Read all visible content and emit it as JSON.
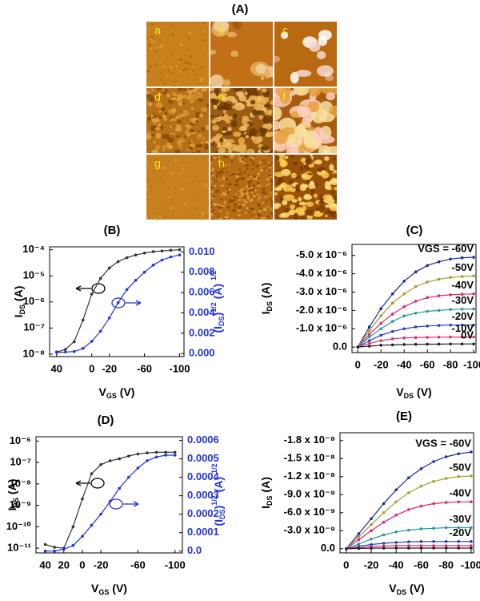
{
  "panel_a": {
    "title": "(A)",
    "tiles": [
      "a",
      "b",
      "c",
      "d",
      "e",
      "f",
      "g",
      "h",
      "i"
    ]
  },
  "chart_data": [
    {
      "type": "line",
      "title": "(B)",
      "x_label": [
        "V",
        {
          "text": "GS",
          "shift": "sub"
        },
        " (V)"
      ],
      "y_label": [
        "I",
        {
          "text": "DS",
          "shift": "sub"
        },
        " (A)"
      ],
      "y2_label": [
        "(I",
        {
          "text": "DS",
          "shift": "sub"
        },
        ")",
        {
          "text": "1/2",
          "shift": "super"
        },
        " (A) ",
        {
          "text": "1/2",
          "shift": "super"
        }
      ],
      "y2_color": "#2233dd",
      "x": [
        40,
        30,
        20,
        10,
        0,
        -10,
        -20,
        -30,
        -40,
        -50,
        -60,
        -70,
        -80,
        -90,
        -100
      ],
      "series": [
        {
          "color": "#333333",
          "values": [
            1.2e-08,
            1.5e-08,
            3e-08,
            2e-07,
            2e-06,
            8e-06,
            2e-05,
            3.5e-05,
            5e-05,
            6.3e-05,
            7.5e-05,
            8.5e-05,
            9e-05,
            9.6e-05,
            0.0001
          ]
        },
        {
          "color": "#2233dd",
          "axis": "y2",
          "values": [
            0.0001,
            0.00015,
            0.0002,
            0.0005,
            0.0012,
            0.0022,
            0.0035,
            0.005,
            0.0063,
            0.0072,
            0.008,
            0.0087,
            0.0092,
            0.0095,
            0.0097
          ]
        }
      ],
      "xlim": [
        48,
        -105
      ],
      "xticks": [
        40,
        0,
        -20,
        -60,
        -100
      ],
      "yscale": "log",
      "ylim": [
        8e-09,
        0.00013
      ],
      "yticks": [
        {
          "value": 1e-08,
          "label": "10⁻⁸"
        },
        {
          "value": 1e-07,
          "label": "10⁻⁷"
        },
        {
          "value": 1e-06,
          "label": "10⁻⁶"
        },
        {
          "value": 1e-05,
          "label": "10⁻⁵"
        },
        {
          "value": 0.0001,
          "label": "10⁻⁴"
        }
      ],
      "y2lim": [
        -0.0003,
        0.0105
      ],
      "y2ticks": [
        {
          "value": 0,
          "label": "0.000"
        },
        0.002,
        0.004,
        0.006,
        0.008,
        {
          "value": 0.01,
          "label": "0.010"
        }
      ]
    },
    {
      "type": "line",
      "title": "(C)",
      "x_label": [
        "V",
        {
          "text": "DS",
          "shift": "sub"
        },
        " (V)"
      ],
      "y_label": [
        "I",
        {
          "text": "DS",
          "shift": "sub"
        },
        " (A)"
      ],
      "x": [
        0,
        -10,
        -20,
        -30,
        -40,
        -50,
        -60,
        -70,
        -80,
        -90,
        -100
      ],
      "series": [
        {
          "name": "VGS = -60V",
          "color": "#1a2a9a",
          "values": [
            0,
            -1.1e-06,
            -2.1e-06,
            -2.9e-06,
            -3.6e-06,
            -4.1e-06,
            -4.45e-06,
            -4.65e-06,
            -4.8e-06,
            -4.87e-06,
            -4.9e-06
          ]
        },
        {
          "name": "-50V",
          "color": "#a0a030",
          "values": [
            0,
            -9e-07,
            -1.7e-06,
            -2.4e-06,
            -2.9e-06,
            -3.3e-06,
            -3.55e-06,
            -3.7e-06,
            -3.8e-06,
            -3.85e-06,
            -3.88e-06
          ]
        },
        {
          "name": "-40V",
          "color": "#e0246c",
          "values": [
            0,
            -7e-07,
            -1.3e-06,
            -1.8e-06,
            -2.2e-06,
            -2.5e-06,
            -2.7e-06,
            -2.8e-06,
            -2.85e-06,
            -2.88e-06,
            -2.9e-06
          ]
        },
        {
          "name": "-30V",
          "color": "#2a9a9a",
          "values": [
            0,
            -5.5e-07,
            -1e-06,
            -1.4e-06,
            -1.7e-06,
            -1.85e-06,
            -1.95e-06,
            -2e-06,
            -2.05e-06,
            -2.07e-06,
            -2.08e-06
          ]
        },
        {
          "name": "-20V",
          "color": "#2040c0",
          "values": [
            0,
            -3.5e-07,
            -6.5e-07,
            -8.5e-07,
            -1e-06,
            -1.1e-06,
            -1.15e-06,
            -1.18e-06,
            -1.2e-06,
            -1.2e-06,
            -1.2e-06
          ]
        },
        {
          "name": "-10V",
          "color": "#e03070",
          "values": [
            0,
            -2e-07,
            -3.5e-07,
            -4.5e-07,
            -5e-07,
            -5.2e-07,
            -5.3e-07,
            -5.4e-07,
            -5.5e-07,
            -5.5e-07,
            -5.5e-07
          ]
        },
        {
          "name": "0V",
          "color": "#222222",
          "values": [
            0,
            -5e-08,
            -1e-07,
            -1.2e-07,
            -1.4e-07,
            -1.5e-07,
            -1.6e-07,
            -1.6e-07,
            -1.7e-07,
            -1.7e-07,
            -1.7e-07
          ]
        }
      ],
      "xlim": [
        5,
        -102
      ],
      "xticks": [
        0,
        -20,
        -40,
        -60,
        -80,
        -100
      ],
      "ylim": [
        3e-07,
        -5.6e-06
      ],
      "yticks": [
        {
          "value": 0,
          "label": "0.0"
        },
        {
          "value": -1e-06,
          "label": "-1.0 x 10⁻⁶"
        },
        {
          "value": -2e-06,
          "label": "-2.0 x 10⁻⁶"
        },
        {
          "value": -3e-06,
          "label": "-3.0 x 10⁻⁶"
        },
        {
          "value": -4e-06,
          "label": "-4.0 x 10⁻⁶"
        },
        {
          "value": -5e-06,
          "label": "-5.0 x 10⁻⁶"
        }
      ]
    },
    {
      "type": "line",
      "title": "(D)",
      "x_label": [
        "V",
        {
          "text": "GS",
          "shift": "sub"
        },
        " (V)"
      ],
      "y_label": [
        "I",
        {
          "text": "DS",
          "shift": "sub"
        },
        " (A)"
      ],
      "y2_label": [
        "(I",
        {
          "text": "DS",
          "shift": "sub"
        },
        ")",
        {
          "text": "1/2",
          "shift": "super"
        },
        " (A) ",
        {
          "text": "1/2",
          "shift": "super"
        }
      ],
      "y2_color": "#2233dd",
      "x": [
        40,
        30,
        20,
        10,
        0,
        -10,
        -20,
        -30,
        -40,
        -50,
        -60,
        -70,
        -80,
        -90,
        -100
      ],
      "series": [
        {
          "color": "#333333",
          "values": [
            1.5e-11,
            1.1e-11,
            1e-11,
            1e-10,
            2e-09,
            3e-08,
            8e-08,
            1.2e-07,
            1.5e-07,
            2e-07,
            2.5e-07,
            2.8e-07,
            3e-07,
            3e-07,
            3e-07
          ]
        },
        {
          "color": "#2233dd",
          "axis": "y2",
          "values": [
            0,
            0,
            1e-05,
            3e-05,
            8e-05,
            0.00014,
            0.0002,
            0.00027,
            0.00034,
            0.0004,
            0.00045,
            0.00049,
            0.00051,
            0.00052,
            0.00052
          ]
        }
      ],
      "xlim": [
        50,
        -108
      ],
      "xticks": [
        40,
        20,
        0,
        -20,
        -60,
        -100
      ],
      "yscale": "log",
      "ylim": [
        6e-12,
        1.6e-06
      ],
      "yticks": [
        {
          "value": 1e-11,
          "label": "10⁻¹¹"
        },
        {
          "value": 1e-10,
          "label": "10⁻¹⁰"
        },
        {
          "value": 1e-09,
          "label": "10⁻⁹"
        },
        {
          "value": 1e-08,
          "label": "10⁻⁸"
        },
        {
          "value": 1e-07,
          "label": "10⁻⁷"
        },
        {
          "value": 1e-06,
          "label": "10⁻⁶"
        }
      ],
      "y2lim": [
        -1e-05,
        0.00062
      ],
      "y2ticks": [
        {
          "value": 0,
          "label": "0.0"
        },
        0.0001,
        0.0002,
        0.0003,
        0.0004,
        0.0005,
        0.0006
      ]
    },
    {
      "type": "line",
      "title": "(E)",
      "x_label": [
        "V",
        {
          "text": "DS",
          "shift": "sub"
        },
        " (V)"
      ],
      "y_label": [
        "I",
        {
          "text": "DS",
          "shift": "sub"
        },
        " (A)"
      ],
      "x": [
        0,
        -10,
        -20,
        -30,
        -40,
        -50,
        -60,
        -70,
        -80,
        -90,
        -100
      ],
      "series": [
        {
          "name": "VGS = -60V",
          "color": "#1a2a9a",
          "values": [
            0,
            -2.5e-09,
            -5e-09,
            -7.5e-09,
            -9.8e-09,
            -1.18e-08,
            -1.33e-08,
            -1.45e-08,
            -1.53e-08,
            -1.58e-08,
            -1.61e-08
          ]
        },
        {
          "name": "-50V",
          "color": "#a0a030",
          "values": [
            0,
            -2e-09,
            -4e-09,
            -6e-09,
            -7.8e-09,
            -9.3e-09,
            -1.04e-08,
            -1.12e-08,
            -1.17e-08,
            -1.2e-08,
            -1.21e-08
          ]
        },
        {
          "name": "-40V",
          "color": "#e0246c",
          "values": [
            0,
            -1.5e-09,
            -3e-09,
            -4.4e-09,
            -5.6e-09,
            -6.5e-09,
            -7.1e-09,
            -7.5e-09,
            -7.7e-09,
            -7.8e-09,
            -7.8e-09
          ]
        },
        {
          "name": "-30V",
          "color": "#2a9a9a",
          "values": [
            0,
            -8e-10,
            -1.6e-09,
            -2.3e-09,
            -2.8e-09,
            -3.1e-09,
            -3.3e-09,
            -3.4e-09,
            -3.5e-09,
            -3.5e-09,
            -3.5e-09
          ]
        },
        {
          "name": "-20V",
          "color": "#2040c0",
          "values": [
            0,
            -4e-10,
            -7e-10,
            -9e-10,
            -1.05e-09,
            -1.15e-09,
            -1.2e-09,
            -1.2e-09,
            -1.2e-09,
            -1.2e-09,
            -1.2e-09
          ]
        },
        {
          "color": "#e03070",
          "values": [
            0,
            -2e-10,
            -3.5e-10,
            -4.5e-10,
            -5e-10,
            -5e-10,
            -5e-10,
            -5e-10,
            -5e-10,
            -5e-10,
            -5e-10
          ]
        },
        {
          "color": "#222222",
          "values": [
            0,
            -5e-11,
            -8e-11,
            -1e-10,
            -1e-10,
            -1e-10,
            -1e-10,
            -1e-10,
            -1e-10,
            -1e-10,
            -1e-10
          ]
        }
      ],
      "xlim": [
        5,
        -102
      ],
      "xticks": [
        0,
        -20,
        -40,
        -60,
        -80,
        -100
      ],
      "ylim": [
        7e-10,
        -1.93e-08
      ],
      "yticks": [
        {
          "value": 0,
          "label": "0.0"
        },
        {
          "value": -3e-09,
          "label": "-3.0 x 10⁻⁹"
        },
        {
          "value": -6e-09,
          "label": "-6.0 x 10⁻⁹"
        },
        {
          "value": -9e-09,
          "label": "-9.0 x 10⁻⁹"
        },
        {
          "value": -1.2e-08,
          "label": "-1.2 x 10⁻⁸"
        },
        {
          "value": -1.5e-08,
          "label": "-1.5 x 10⁻⁸"
        },
        {
          "value": -1.8e-08,
          "label": "-1.8 x 10⁻⁸"
        }
      ]
    }
  ]
}
